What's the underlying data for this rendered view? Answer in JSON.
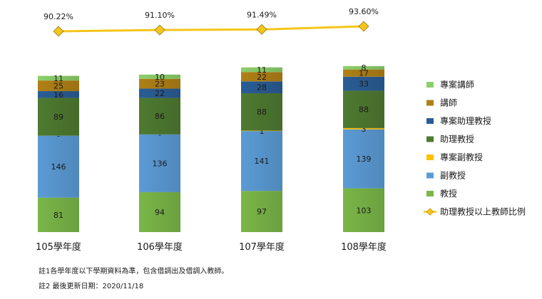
{
  "chart_data": {
    "type": "bar",
    "stacked": true,
    "categories": [
      "105學年度",
      "106學年度",
      "107學年度",
      "108學年度"
    ],
    "series": [
      {
        "name": "教授",
        "color": "#7ab648",
        "values": [
          81,
          94,
          97,
          103
        ]
      },
      {
        "name": "副教授",
        "color": "#5b9bd5",
        "values": [
          146,
          136,
          141,
          139
        ]
      },
      {
        "name": "專案副教授",
        "color": "#ffc000",
        "values": [
          0,
          0,
          1,
          3
        ],
        "labels": [
          "-",
          "-",
          "1",
          "3"
        ]
      },
      {
        "name": "助理教授",
        "color": "#4e7a31",
        "values": [
          89,
          86,
          88,
          88
        ]
      },
      {
        "name": "專案助理教授",
        "color": "#2a5d95",
        "values": [
          16,
          22,
          28,
          33
        ]
      },
      {
        "name": "講師",
        "color": "#b08016",
        "values": [
          25,
          23,
          22,
          17
        ]
      },
      {
        "name": "專案講師",
        "color": "#8ccf6a",
        "values": [
          11,
          10,
          11,
          8
        ]
      }
    ],
    "line_series": {
      "name": "助理教授以上教師比例",
      "color": "#f5c518",
      "values": [
        90.22,
        91.1,
        91.49,
        93.6
      ],
      "labels": [
        "90.22%",
        "91.10%",
        "91.49%",
        "93.60%"
      ]
    },
    "legend_order": [
      "專案講師",
      "講師",
      "專案助理教授",
      "助理教授",
      "專案副教授",
      "副教授",
      "教授",
      "助理教授以上教師比例"
    ],
    "legend_position": "right"
  },
  "notes": [
    "註1各學年度以下學期資料為準，包含借調出及借調入教師。",
    "註2 最後更新日期：2020/11/18"
  ]
}
